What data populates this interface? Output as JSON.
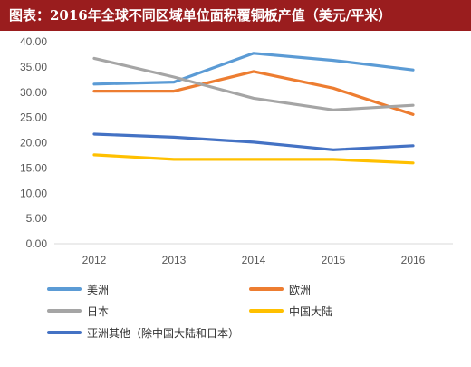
{
  "header": {
    "title": "图表：2016年全球不同区域单位面积覆铜板产值（美元/平米）"
  },
  "chart_data": {
    "type": "line",
    "title": "图表：2016年全球不同区域单位面积覆铜板产值（美元/平米）",
    "xlabel": "",
    "ylabel": "",
    "x": [
      "2012",
      "2013",
      "2014",
      "2015",
      "2016"
    ],
    "ylim": [
      0,
      40
    ],
    "y_ticks": [
      "0.00",
      "5.00",
      "10.00",
      "15.00",
      "20.00",
      "25.00",
      "30.00",
      "35.00",
      "40.00"
    ],
    "grid": false,
    "legend_position": "bottom",
    "series": [
      {
        "name": "美洲",
        "color": "#5b9bd5",
        "values": [
          31.6,
          32.0,
          37.7,
          36.3,
          34.4
        ]
      },
      {
        "name": "欧洲",
        "color": "#ed7d31",
        "values": [
          30.2,
          30.2,
          34.1,
          30.8,
          25.6
        ]
      },
      {
        "name": "日本",
        "color": "#a5a5a5",
        "values": [
          36.7,
          33.0,
          28.8,
          26.5,
          27.4
        ]
      },
      {
        "name": "中国大陆",
        "color": "#ffc000",
        "values": [
          17.6,
          16.7,
          16.7,
          16.7,
          16.0
        ]
      },
      {
        "name": "亚洲其他（除中国大陆和日本）",
        "color": "#4472c4",
        "values": [
          21.7,
          21.1,
          20.1,
          18.6,
          19.4
        ]
      }
    ]
  }
}
